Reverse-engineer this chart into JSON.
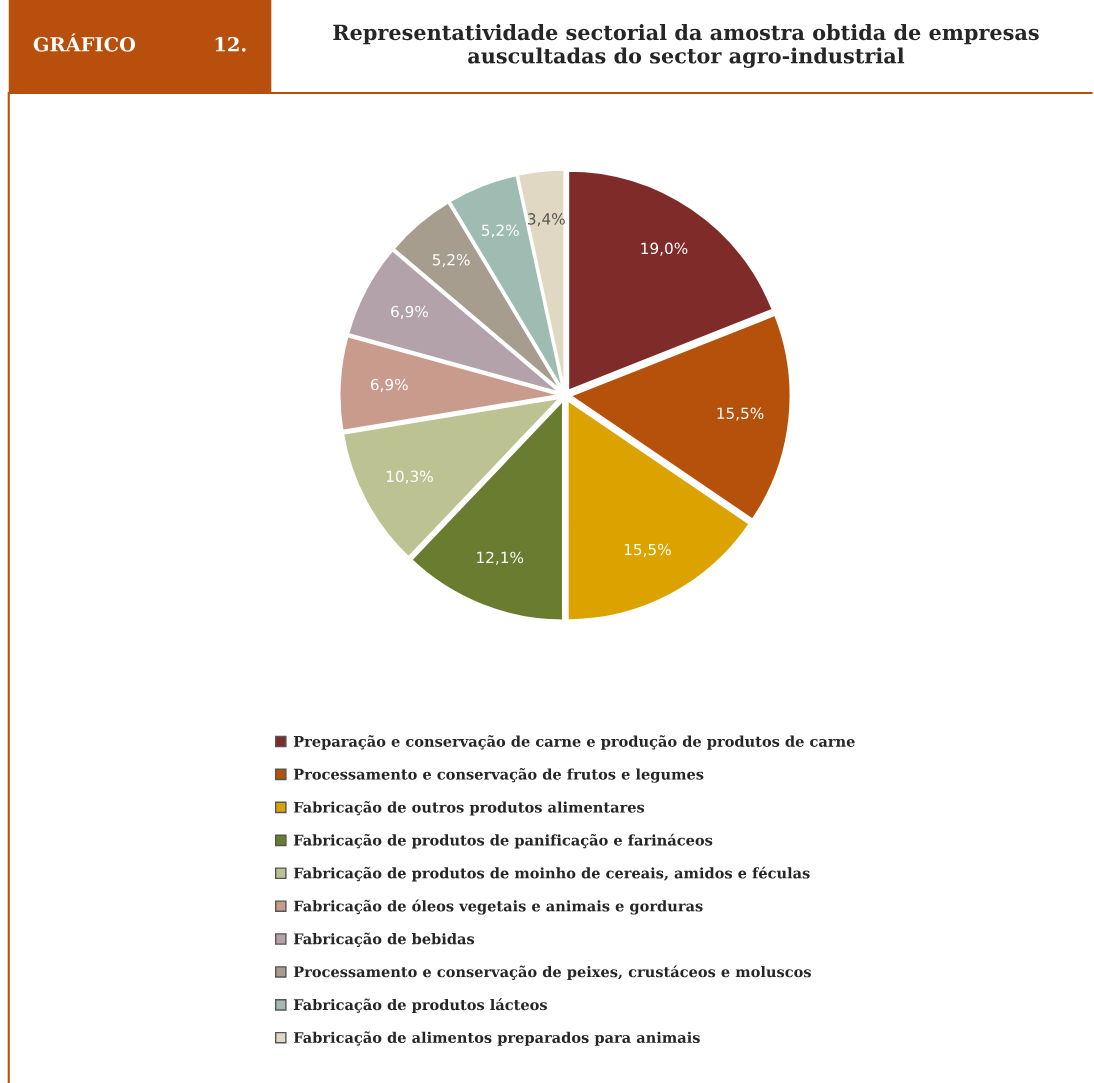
{
  "chart_data": {
    "type": "pie",
    "title": "Representatividade sectorial da amostra obtida de empresas auscultadas do sector agro-industrial",
    "annotations": [
      "GRÁFICO",
      "12."
    ],
    "categories": [
      "Preparação e conservação de carne e produção de produtos de carne",
      "Processamento e conservação de frutos e legumes",
      "Fabricação de outros produtos alimentares",
      "Fabricação de produtos de panificação e farináceos",
      "Fabricação de produtos de moinho de cereais, amidos e féculas",
      "Fabricação de óleos vegetais e animais e gorduras",
      "Fabricação de bebidas",
      "Processamento e conservação de peixes, crustáceos e moluscos",
      "Fabricação de produtos lácteos",
      "Fabricação de alimentos preparados para animais"
    ],
    "values": [
      19.0,
      15.5,
      15.5,
      12.1,
      10.3,
      6.9,
      6.9,
      5.2,
      5.2,
      3.4
    ],
    "value_labels": [
      "19,0%",
      "15,5%",
      "15,5%",
      "12,1%",
      "10,3%",
      "6,9%",
      "6,9%",
      "5,2%",
      "5,2%",
      "3,4%"
    ],
    "colors": [
      "#7f2b29",
      "#b5510b",
      "#dca300",
      "#6a7c2f",
      "#bdc293",
      "#c99b8c",
      "#b3a2a9",
      "#a69d8f",
      "#9fbcb2",
      "#e0d8c2"
    ],
    "legend": "bottom"
  }
}
